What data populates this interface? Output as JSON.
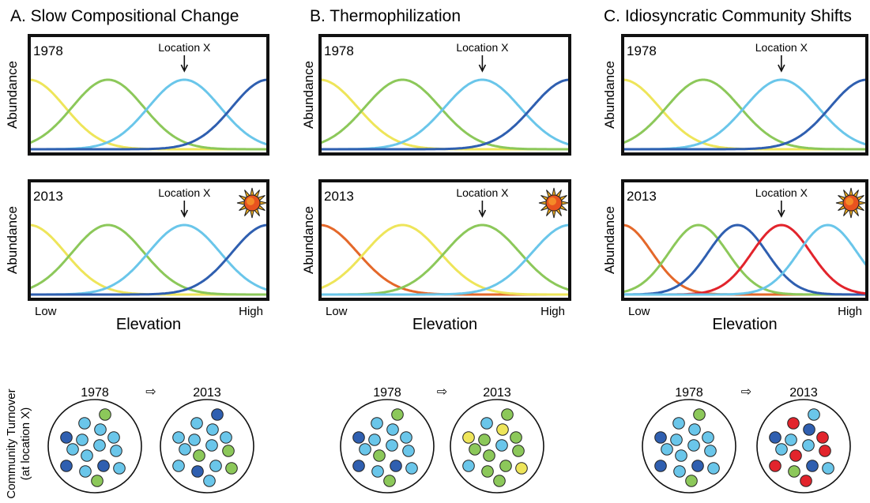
{
  "figure": {
    "y_axis_label": "Abundance",
    "x_axis_label": "Elevation",
    "x_low_label": "Low",
    "x_high_label": "High",
    "location_label": "Location X",
    "arrow_glyph": "⇨",
    "turnover_label_line1": "Community Turnover",
    "turnover_label_line2": "(at location X)",
    "warming_icon": "sun-icon"
  },
  "colors": {
    "yellow": "#eee55a",
    "green": "#8cc85a",
    "lightblue": "#6ac6ea",
    "darkblue": "#2f5fb0",
    "orange": "#e4682a",
    "red": "#e2242c"
  },
  "panels": [
    {
      "id": "A",
      "title": "A. Slow Compositional Change",
      "plots": [
        {
          "year": "1978",
          "location_x": 0.65,
          "sun": false,
          "curves": [
            {
              "species": "yellow",
              "peak": 0.0,
              "width": 0.15
            },
            {
              "species": "green",
              "peak": 0.33,
              "width": 0.15
            },
            {
              "species": "lightblue",
              "peak": 0.65,
              "width": 0.15
            },
            {
              "species": "darkblue",
              "peak": 1.0,
              "width": 0.15
            }
          ]
        },
        {
          "year": "2013",
          "location_x": 0.65,
          "sun": true,
          "curves": [
            {
              "species": "yellow",
              "peak": 0.0,
              "width": 0.15
            },
            {
              "species": "green",
              "peak": 0.33,
              "width": 0.15
            },
            {
              "species": "lightblue",
              "peak": 0.65,
              "width": 0.15
            },
            {
              "species": "darkblue",
              "peak": 1.0,
              "width": 0.15
            }
          ]
        }
      ],
      "community": {
        "before_year": "1978",
        "after_year": "2013",
        "before": [
          "green",
          "lightblue",
          "lightblue",
          "darkblue",
          "lightblue",
          "lightblue",
          "lightblue",
          "lightblue",
          "lightblue",
          "lightblue",
          "darkblue",
          "lightblue",
          "darkblue",
          "lightblue",
          "green"
        ],
        "after": [
          "darkblue",
          "lightblue",
          "lightblue",
          "lightblue",
          "lightblue",
          "lightblue",
          "lightblue",
          "lightblue",
          "green",
          "green",
          "lightblue",
          "darkblue",
          "lightblue",
          "green",
          "lightblue"
        ]
      }
    },
    {
      "id": "B",
      "title": "B. Thermophilization",
      "plots": [
        {
          "year": "1978",
          "location_x": 0.65,
          "sun": false,
          "curves": [
            {
              "species": "yellow",
              "peak": 0.0,
              "width": 0.15
            },
            {
              "species": "green",
              "peak": 0.33,
              "width": 0.15
            },
            {
              "species": "lightblue",
              "peak": 0.65,
              "width": 0.15
            },
            {
              "species": "darkblue",
              "peak": 1.0,
              "width": 0.15
            }
          ]
        },
        {
          "year": "2013",
          "location_x": 0.65,
          "sun": true,
          "curves": [
            {
              "species": "orange",
              "peak": 0.0,
              "width": 0.15
            },
            {
              "species": "yellow",
              "peak": 0.33,
              "width": 0.15
            },
            {
              "species": "green",
              "peak": 0.65,
              "width": 0.15
            },
            {
              "species": "lightblue",
              "peak": 1.0,
              "width": 0.15
            }
          ]
        }
      ],
      "community": {
        "before_year": "1978",
        "after_year": "2013",
        "before": [
          "green",
          "lightblue",
          "lightblue",
          "darkblue",
          "lightblue",
          "lightblue",
          "lightblue",
          "lightblue",
          "green",
          "lightblue",
          "darkblue",
          "lightblue",
          "darkblue",
          "lightblue",
          "green"
        ],
        "after": [
          "green",
          "lightblue",
          "yellow",
          "yellow",
          "green",
          "green",
          "lightblue",
          "green",
          "green",
          "green",
          "lightblue",
          "green",
          "green",
          "yellow",
          "green"
        ]
      }
    },
    {
      "id": "C",
      "title": "C. Idiosyncratic Community Shifts",
      "plots": [
        {
          "year": "1978",
          "location_x": 0.65,
          "sun": false,
          "curves": [
            {
              "species": "yellow",
              "peak": 0.0,
              "width": 0.15
            },
            {
              "species": "green",
              "peak": 0.33,
              "width": 0.15
            },
            {
              "species": "lightblue",
              "peak": 0.65,
              "width": 0.15
            },
            {
              "species": "darkblue",
              "peak": 1.0,
              "width": 0.15
            }
          ]
        },
        {
          "year": "2013",
          "location_x": 0.65,
          "sun": true,
          "curves": [
            {
              "species": "orange",
              "peak": 0.0,
              "width": 0.12
            },
            {
              "species": "green",
              "peak": 0.31,
              "width": 0.12
            },
            {
              "species": "darkblue",
              "peak": 0.47,
              "width": 0.12
            },
            {
              "species": "red",
              "peak": 0.65,
              "width": 0.12
            },
            {
              "species": "lightblue",
              "peak": 0.84,
              "width": 0.12
            }
          ]
        }
      ],
      "community": {
        "before_year": "1978",
        "after_year": "2013",
        "before": [
          "green",
          "lightblue",
          "lightblue",
          "darkblue",
          "lightblue",
          "lightblue",
          "lightblue",
          "lightblue",
          "lightblue",
          "lightblue",
          "darkblue",
          "lightblue",
          "darkblue",
          "lightblue",
          "green"
        ],
        "after": [
          "lightblue",
          "red",
          "darkblue",
          "darkblue",
          "lightblue",
          "red",
          "lightblue",
          "lightblue",
          "red",
          "red",
          "red",
          "green",
          "darkblue",
          "lightblue",
          "red"
        ]
      }
    }
  ]
}
